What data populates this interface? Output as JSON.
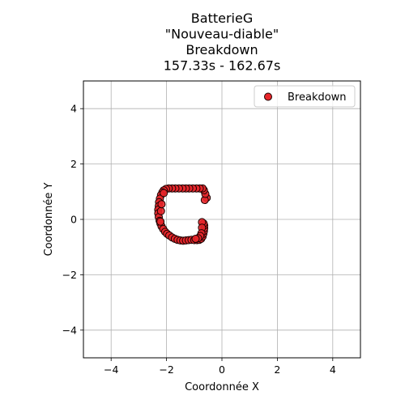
{
  "chart_data": {
    "type": "scatter",
    "title_lines": [
      "BatterieG",
      "\"Nouveau-diable\"",
      "Breakdown",
      "157.33s - 162.67s"
    ],
    "xlabel": "Coordonnée X",
    "ylabel": "Coordonnée Y",
    "xlim": [
      -5,
      5
    ],
    "ylim": [
      -5,
      5
    ],
    "xticks": [
      -4,
      -2,
      0,
      2,
      4
    ],
    "yticks": [
      -4,
      -2,
      0,
      2,
      4
    ],
    "xtick_labels": [
      "−4",
      "−2",
      "0",
      "2",
      "4"
    ],
    "ytick_labels": [
      "−4",
      "−2",
      "0",
      "2",
      "4"
    ],
    "grid": true,
    "legend": {
      "position": "upper-right",
      "entries": [
        "Breakdown"
      ]
    },
    "series": [
      {
        "name": "Breakdown",
        "color": "#e8262a",
        "edgecolor": "#1a0000",
        "points": [
          [
            -0.55,
            0.78
          ],
          [
            -0.62,
            0.7
          ],
          [
            -0.6,
            0.92
          ],
          [
            -0.65,
            1.05
          ],
          [
            -0.7,
            1.12
          ],
          [
            -0.8,
            1.12
          ],
          [
            -0.92,
            1.12
          ],
          [
            -1.05,
            1.12
          ],
          [
            -1.18,
            1.12
          ],
          [
            -1.3,
            1.12
          ],
          [
            -1.42,
            1.12
          ],
          [
            -1.55,
            1.12
          ],
          [
            -1.68,
            1.12
          ],
          [
            -1.8,
            1.12
          ],
          [
            -1.92,
            1.12
          ],
          [
            -2.02,
            1.1
          ],
          [
            -2.1,
            1.05
          ],
          [
            -2.15,
            0.98
          ],
          [
            -2.2,
            0.88
          ],
          [
            -2.24,
            0.75
          ],
          [
            -2.27,
            0.62
          ],
          [
            -2.28,
            0.48
          ],
          [
            -2.3,
            0.35
          ],
          [
            -2.3,
            0.22
          ],
          [
            -2.28,
            0.08
          ],
          [
            -2.25,
            -0.05
          ],
          [
            -2.22,
            -0.15
          ],
          [
            -2.18,
            -0.25
          ],
          [
            -2.12,
            -0.35
          ],
          [
            -2.05,
            -0.45
          ],
          [
            -1.98,
            -0.52
          ],
          [
            -1.9,
            -0.58
          ],
          [
            -1.8,
            -0.65
          ],
          [
            -1.7,
            -0.7
          ],
          [
            -1.6,
            -0.74
          ],
          [
            -1.5,
            -0.76
          ],
          [
            -1.4,
            -0.77
          ],
          [
            -1.3,
            -0.76
          ],
          [
            -1.2,
            -0.75
          ],
          [
            -1.1,
            -0.74
          ],
          [
            -1.0,
            -0.75
          ],
          [
            -0.9,
            -0.75
          ],
          [
            -0.82,
            -0.74
          ],
          [
            -0.75,
            -0.7
          ],
          [
            -0.7,
            -0.62
          ],
          [
            -0.67,
            -0.52
          ],
          [
            -0.65,
            -0.42
          ],
          [
            -0.64,
            -0.32
          ],
          [
            -0.64,
            -0.22
          ],
          [
            -0.66,
            -0.15
          ],
          [
            -0.72,
            -0.1
          ],
          [
            -0.72,
            -0.3
          ],
          [
            -0.74,
            -0.5
          ],
          [
            -0.78,
            -0.6
          ],
          [
            -0.86,
            -0.68
          ],
          [
            -0.95,
            -0.7
          ],
          [
            -2.2,
            0.3
          ],
          [
            -2.18,
            0.55
          ],
          [
            -2.22,
            -0.08
          ],
          [
            -2.1,
            0.95
          ]
        ]
      }
    ]
  }
}
